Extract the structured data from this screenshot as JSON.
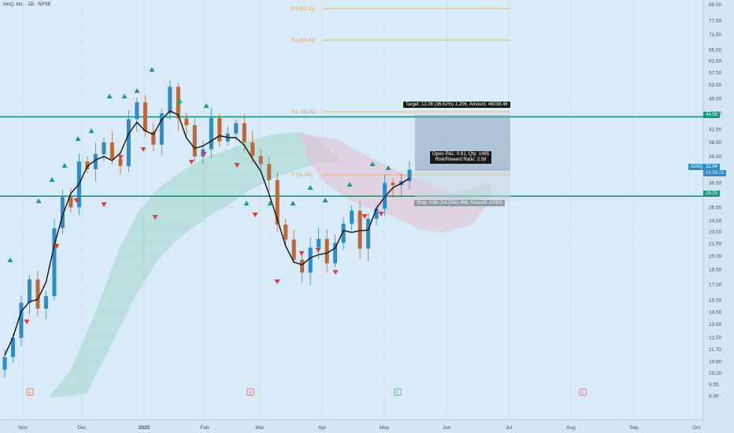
{
  "header": {
    "title": "IonQ, Inc. · 1D · NYSE"
  },
  "price_axis": {
    "ticks": [
      "85.00",
      "77.50",
      "71.50",
      "65.50",
      "61.50",
      "57.50",
      "53.50",
      "49.50",
      "45.50",
      "41.50",
      "38.50",
      "35.50",
      "32.50",
      "30.50",
      "26.50",
      "24.50",
      "23.00",
      "21.50",
      "20.00",
      "18.50",
      "17.00",
      "15.50",
      "14.50",
      "13.50",
      "12.50",
      "11.70",
      "10.90",
      "10.20",
      "9.55",
      "8.95"
    ],
    "badges": {
      "upper_line": "44.59",
      "symbol": "IONQ",
      "last_price": "32.94",
      "countdown": "01:59:22",
      "lower_line": "28.25"
    }
  },
  "time_axis": {
    "labels": [
      "Nov",
      "Dec",
      "2025",
      "Feb",
      "Mar",
      "Apr",
      "May",
      "Jun",
      "Jul",
      "Aug",
      "Sep",
      "Oct"
    ]
  },
  "fib_labels": {
    "r3": "R3 (82.11)",
    "r2": "R2 (68.42)",
    "r1": "R1 (55.25)",
    "pivot": "P (31.66)"
  },
  "position_tool": {
    "target": "Target: 12.06 (36.62%) 1,206, Amount: 46038.46",
    "open_pnl": "Open P&L: 0.61, Qty: 1495",
    "rr": "Risk/Reward Ratio: 2.58",
    "stop": "Stop: 4.66 (14.21%) 466, Amount: 21000"
  },
  "events": [
    "E",
    "E",
    "E",
    "E"
  ],
  "colors": {
    "bg": "#d9eaf8",
    "bull": "#2e8bc8",
    "bear": "#b86a3a",
    "level": "#129a7a",
    "up_marker": "#1e9e78",
    "down_marker": "#e23c3c",
    "fib": "#f0a030"
  },
  "chart_data": {
    "type": "candlestick",
    "series": [
      {
        "name": "IONQ",
        "x_start": "Nov",
        "close": [
          11.2,
          12.5,
          15.3,
          17.5,
          14.8,
          15.9,
          23.5,
          28.1,
          26.5,
          34.5,
          33.0,
          36.0,
          38.5,
          35.0,
          33.6,
          44.0,
          48.5,
          41.0,
          38.0,
          45.5,
          53.0,
          44.2,
          42.5,
          35.5,
          37.0,
          44.3,
          38.7,
          40.5,
          43.0,
          38.5,
          35.6,
          34.0,
          31.0,
          24.0,
          22.0,
          19.6,
          18.2,
          21.0,
          22.1,
          19.2,
          21.6,
          24.1,
          26.0,
          20.9,
          24.8,
          26.3,
          30.5,
          30.1,
          30.8,
          32.9
        ]
      }
    ],
    "levels": [
      44.59,
      28.25
    ],
    "pivots": {
      "R3": 82.11,
      "R2": 68.42,
      "R1": 55.25,
      "P": 31.66
    }
  }
}
